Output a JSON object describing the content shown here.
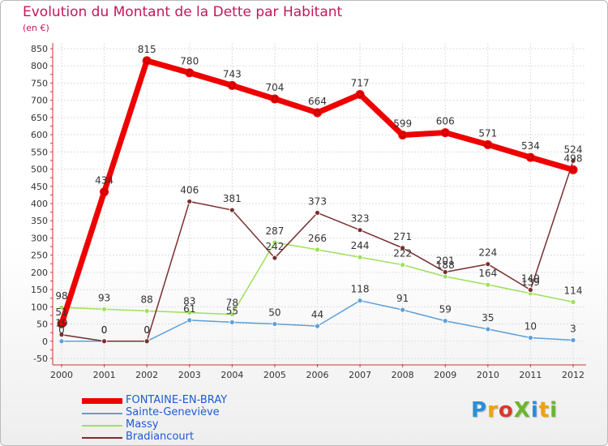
{
  "title": "Evolution du Montant de la Dette par Habitant",
  "unit_label": "(en €)",
  "logo": {
    "text": "ProXiti",
    "colors": [
      "#2a8fd8",
      "#f2a200",
      "#d73a2a",
      "#69b82b",
      "#2a8fd8",
      "#f2a200",
      "#69b82b"
    ]
  },
  "chart_data": {
    "type": "line",
    "title": "Evolution du Montant de la Dette par Habitant",
    "ylabel": "(en €)",
    "xlabel": "",
    "x": [
      "2000",
      "2001",
      "2002",
      "2003",
      "2004",
      "2005",
      "2006",
      "2007",
      "2008",
      "2009",
      "2010",
      "2011",
      "2012"
    ],
    "ylim": [
      -50,
      850
    ],
    "yticks": [
      -50,
      0,
      50,
      100,
      150,
      200,
      250,
      300,
      350,
      400,
      450,
      500,
      550,
      600,
      650,
      700,
      750,
      800,
      850
    ],
    "grid": true,
    "legend_position": "bottom-left",
    "series": [
      {
        "name": "FONTAINE-EN-BRAY",
        "color": "#ee0000",
        "values": [
          51,
          434,
          815,
          780,
          743,
          704,
          664,
          717,
          599,
          606,
          571,
          534,
          498
        ],
        "labels": [
          "51",
          "434",
          "815",
          "780",
          "743",
          "704",
          "664",
          "717",
          "599",
          "606",
          "571",
          "534",
          "498"
        ]
      },
      {
        "name": "Sainte-Geneviève",
        "color": "#5e9fd8",
        "values": [
          0,
          0,
          0,
          61,
          55,
          50,
          44,
          118,
          91,
          59,
          35,
          10,
          3
        ],
        "labels": [
          "0",
          "0",
          "0",
          "61",
          "55",
          "50",
          "44",
          "118",
          "91",
          "59",
          "35",
          "10",
          "3"
        ]
      },
      {
        "name": "Massy",
        "color": "#9ee05a",
        "values": [
          98,
          93,
          88,
          83,
          78,
          287,
          266,
          244,
          222,
          188,
          164,
          139,
          114
        ],
        "labels": [
          "98",
          "93",
          "88",
          "83",
          "78",
          "287",
          "266",
          "244",
          "222",
          "188",
          "164",
          "139",
          "114"
        ]
      },
      {
        "name": "Bradiancourt",
        "color": "#7a2f2f",
        "values": [
          19,
          0,
          0,
          406,
          381,
          242,
          373,
          323,
          271,
          201,
          224,
          149,
          524
        ],
        "labels": [
          "19",
          "0",
          "0",
          "406",
          "381",
          "242",
          "373",
          "323",
          "271",
          "201",
          "224",
          "149",
          "524"
        ]
      }
    ]
  }
}
